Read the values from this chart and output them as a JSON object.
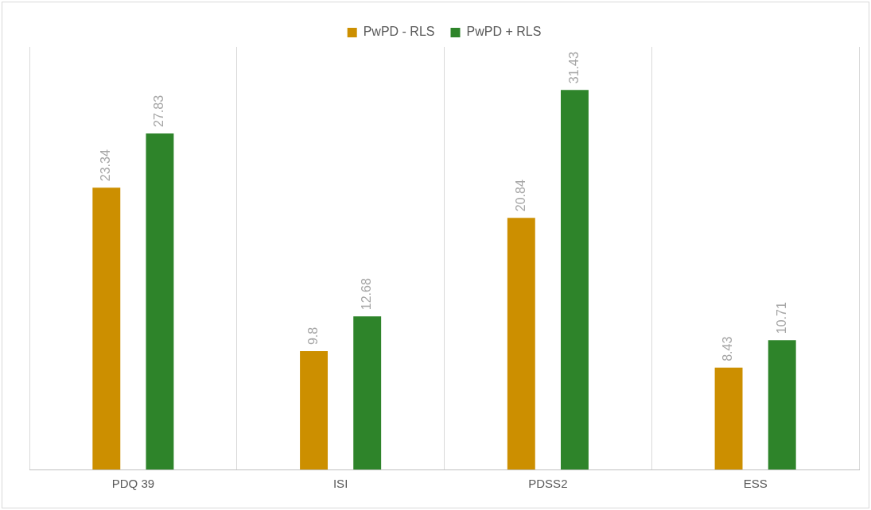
{
  "chart_data": {
    "type": "bar",
    "categories": [
      "PDQ 39",
      "ISI",
      "PDSS2",
      "ESS"
    ],
    "series": [
      {
        "name": "PwPD - RLS",
        "color": "#cc8f00",
        "values": [
          23.34,
          9.8,
          20.84,
          8.43
        ]
      },
      {
        "name": "PwPD + RLS",
        "color": "#2e842a",
        "values": [
          27.83,
          12.68,
          31.43,
          10.71
        ]
      }
    ],
    "data_labels": true,
    "grid": "x",
    "legend": "top",
    "tick_labels": "x"
  }
}
